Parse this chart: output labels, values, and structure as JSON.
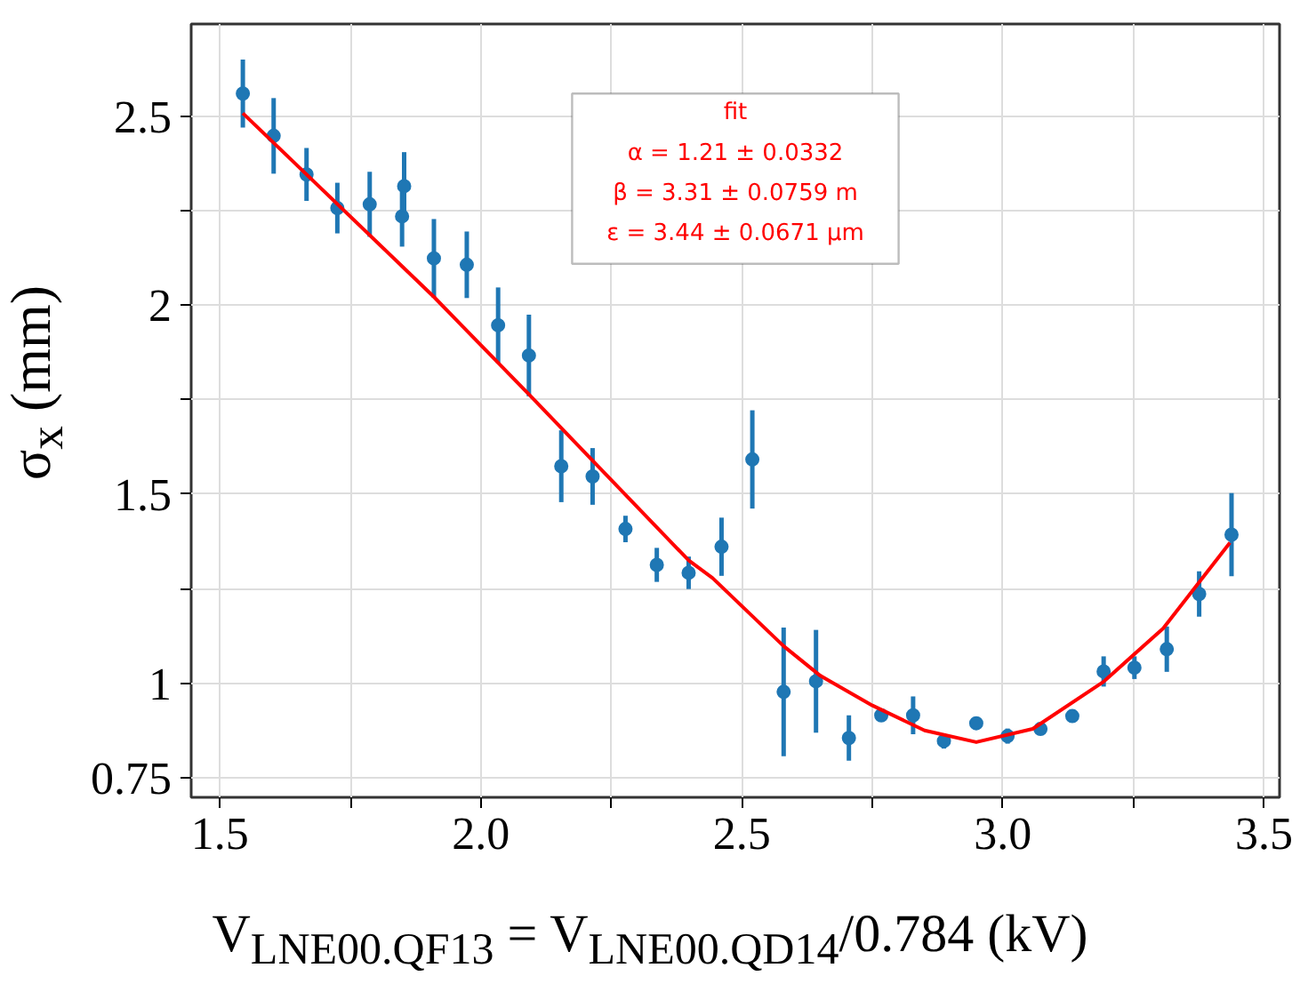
{
  "chart_data": {
    "type": "scatter",
    "xlabel": "V$_{LNE00.QF13}$ = V$_{LNE00.QD14}$/0.784 (kV)",
    "ylabel": "σ$_{x}$ (mm)",
    "xlim": [
      1.445,
      3.53
    ],
    "ylim": [
      0.698,
      2.744
    ],
    "xticks": [
      1.5,
      {
        "value": 1.75,
        "label": null
      },
      {
        "value": 2.0,
        "label": "2.0"
      },
      {
        "value": 2.25,
        "label": null
      },
      2.5,
      {
        "value": 2.75,
        "label": null
      },
      {
        "value": 3.0,
        "label": "3.0"
      },
      {
        "value": 3.25,
        "label": null
      },
      3.5
    ],
    "yticks": [
      0.75,
      1,
      {
        "value": 1.25,
        "label": null
      },
      1.5,
      {
        "value": 1.75,
        "label": null
      },
      2,
      {
        "value": 2.25,
        "label": null
      },
      2.5
    ],
    "grid": true,
    "series": [
      {
        "color": "#1f77b4",
        "marker": "circle",
        "x": [
          1.544,
          1.603,
          1.666,
          1.725,
          1.787,
          1.849,
          1.853,
          1.91,
          1.973,
          2.033,
          2.092,
          2.154,
          2.214,
          2.277,
          2.337,
          2.398,
          2.461,
          2.52,
          2.58,
          2.642,
          2.705,
          2.767,
          2.828,
          2.887,
          2.949,
          3.009,
          3.072,
          3.133,
          3.193,
          3.252,
          3.314,
          3.376,
          3.438
        ],
        "values": [
          2.56,
          2.448,
          2.346,
          2.257,
          2.267,
          2.235,
          2.315,
          2.124,
          2.107,
          1.947,
          1.867,
          1.574,
          1.547,
          1.408,
          1.313,
          1.292,
          1.361,
          1.592,
          0.977,
          1.005,
          0.855,
          0.915,
          0.915,
          0.847,
          0.894,
          0.86,
          0.879,
          0.913,
          1.031,
          1.041,
          1.09,
          1.236,
          1.393
        ],
        "errors": [
          0.09,
          0.1,
          0.07,
          0.067,
          0.086,
          0.08,
          0.09,
          0.104,
          0.088,
          0.1,
          0.108,
          0.095,
          0.075,
          0.035,
          0.045,
          0.043,
          0.077,
          0.13,
          0.17,
          0.136,
          0.06,
          0.01,
          0.05,
          0.02,
          0.015,
          0.02,
          0.015,
          0.015,
          0.04,
          0.03,
          0.06,
          0.06,
          0.11
        ]
      },
      {
        "type": "line",
        "name": "fit",
        "color": "#ff0000",
        "x": [
          1.544,
          1.91,
          2.092,
          2.398,
          2.444,
          2.58,
          2.65,
          2.75,
          2.85,
          2.949,
          3.057,
          3.193,
          3.307,
          3.435
        ],
        "values": [
          2.508,
          2.022,
          1.764,
          1.325,
          1.278,
          1.098,
          1.02,
          0.941,
          0.875,
          0.844,
          0.879,
          1.004,
          1.145,
          1.372
        ]
      }
    ],
    "annotations": [
      "α = 1.21 ± 0.0332",
      "β = 3.31 ± 0.0759 m",
      "ε = 3.44 ± 0.0671 μm"
    ]
  }
}
